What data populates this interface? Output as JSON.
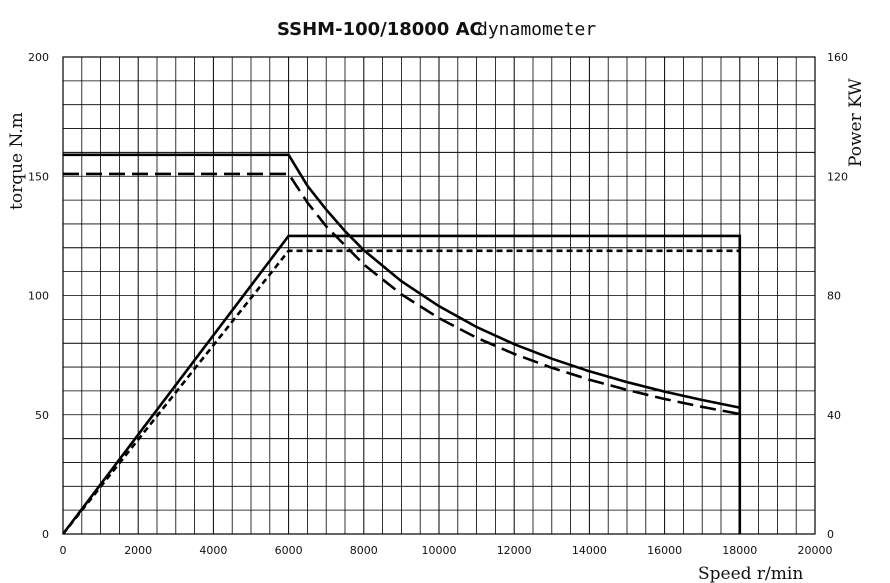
{
  "chart_data": {
    "type": "line",
    "title_main": "SSHM-100/18000 AC",
    "title_sub": "dynamometer",
    "xlabel": "Speed r/min",
    "ylabel_left": "torque N.m",
    "ylabel_right": "Power KW",
    "xlim": [
      0,
      20000
    ],
    "ylim_left": [
      0,
      200
    ],
    "ylim_right": [
      0,
      160
    ],
    "x_ticks": [
      "0",
      "2000",
      "4000",
      "6000",
      "8000",
      "10000",
      "12000",
      "14000",
      "16000",
      "18000",
      "20000"
    ],
    "y_left_ticks": [
      "0",
      "50",
      "100",
      "150",
      "200"
    ],
    "y_right_ticks": [
      "0",
      "40",
      "80",
      "120",
      "160"
    ],
    "grid": true,
    "series": [
      {
        "axis": "left",
        "style": "solid",
        "x": [
          0,
          6000,
          6500,
          7000,
          7500,
          8000,
          9000,
          10000,
          11000,
          12000,
          13000,
          14000,
          15000,
          16000,
          17000,
          18000
        ],
        "y": [
          159,
          159,
          146,
          136,
          127,
          119,
          106,
          95.5,
          86.8,
          79.6,
          73.5,
          68.2,
          63.7,
          59.7,
          56.2,
          53
        ]
      },
      {
        "axis": "left",
        "style": "longdash",
        "x": [
          0,
          6000,
          6500,
          7000,
          7500,
          8000,
          9000,
          10000,
          11000,
          12000,
          13000,
          14000,
          15000,
          16000,
          17000,
          18000
        ],
        "y": [
          151,
          151,
          139,
          129,
          121,
          113,
          100.5,
          90.5,
          82.3,
          75.5,
          69.7,
          64.7,
          60.4,
          56.6,
          53.3,
          50.3
        ]
      },
      {
        "axis": "right",
        "style": "solid",
        "x": [
          0,
          6000,
          18000,
          18000
        ],
        "y": [
          0,
          100,
          100,
          0
        ]
      },
      {
        "axis": "right",
        "style": "shortdash",
        "x": [
          0,
          6000,
          18000
        ],
        "y": [
          0,
          95,
          95
        ]
      }
    ]
  }
}
